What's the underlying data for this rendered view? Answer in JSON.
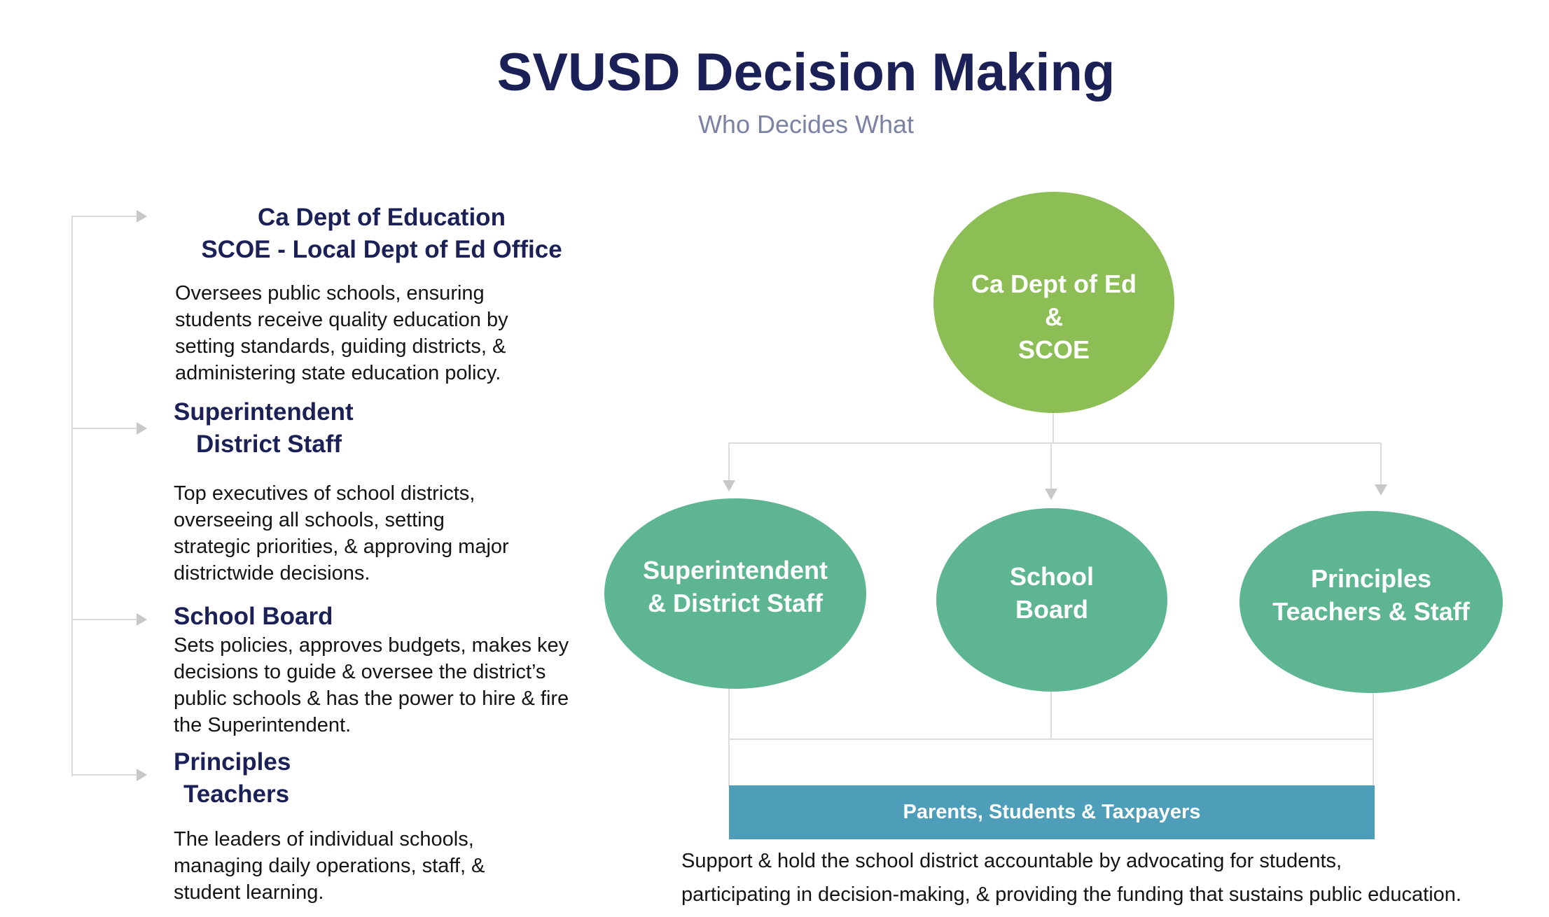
{
  "colors": {
    "title_navy": "#1b2156",
    "subtitle_gray": "#7b82a4",
    "body_text": "#141414",
    "top_node_green": "#8cbe55",
    "child_node_teal": "#5eb592",
    "bar_blue": "#4e9eb9",
    "connector_gray": "#dcdcde",
    "arrow_gray": "#c8c8c8",
    "node_text_white": "#ffffff"
  },
  "header": {
    "title": "SVUSD Decision Making",
    "subtitle": "Who Decides What"
  },
  "left_sections": [
    {
      "heading_lines": [
        "Ca Dept of Education",
        "SCOE - Local Dept of Ed Office"
      ],
      "body_lines": [
        "Oversees public schools, ensuring",
        "students receive quality education by",
        "setting standards, guiding districts, &",
        "administering state education policy."
      ]
    },
    {
      "heading_lines": [
        "Superintendent",
        "District Staff"
      ],
      "body_lines": [
        "Top executives of school districts,",
        "overseeing all schools, setting",
        "strategic priorities, & approving major",
        "districtwide decisions."
      ]
    },
    {
      "heading_lines": [
        "School Board"
      ],
      "body_lines": [
        "Sets policies, approves budgets, makes key",
        "decisions to guide & oversee the district’s",
        "public schools & has the power to hire & fire",
        "the Superintendent."
      ]
    },
    {
      "heading_lines": [
        "Principles",
        "Teachers"
      ],
      "body_lines": [
        "The leaders of individual schools,",
        "managing daily operations, staff, &",
        "student learning."
      ]
    }
  ],
  "org_chart": {
    "top_node": {
      "lines": [
        "Ca Dept of Ed",
        "&",
        "SCOE"
      ]
    },
    "child_nodes": [
      {
        "lines": [
          "Superintendent",
          "& District Staff"
        ]
      },
      {
        "lines": [
          "School",
          "Board"
        ]
      },
      {
        "lines": [
          "Principles",
          "Teachers & Staff"
        ]
      }
    ],
    "bottom_bar": {
      "label": "Parents, Students & Taxpayers"
    },
    "footer_lines": [
      "Support & hold the school district accountable by advocating for students,",
      "participating in decision-making, & providing the funding that sustains public education."
    ]
  }
}
